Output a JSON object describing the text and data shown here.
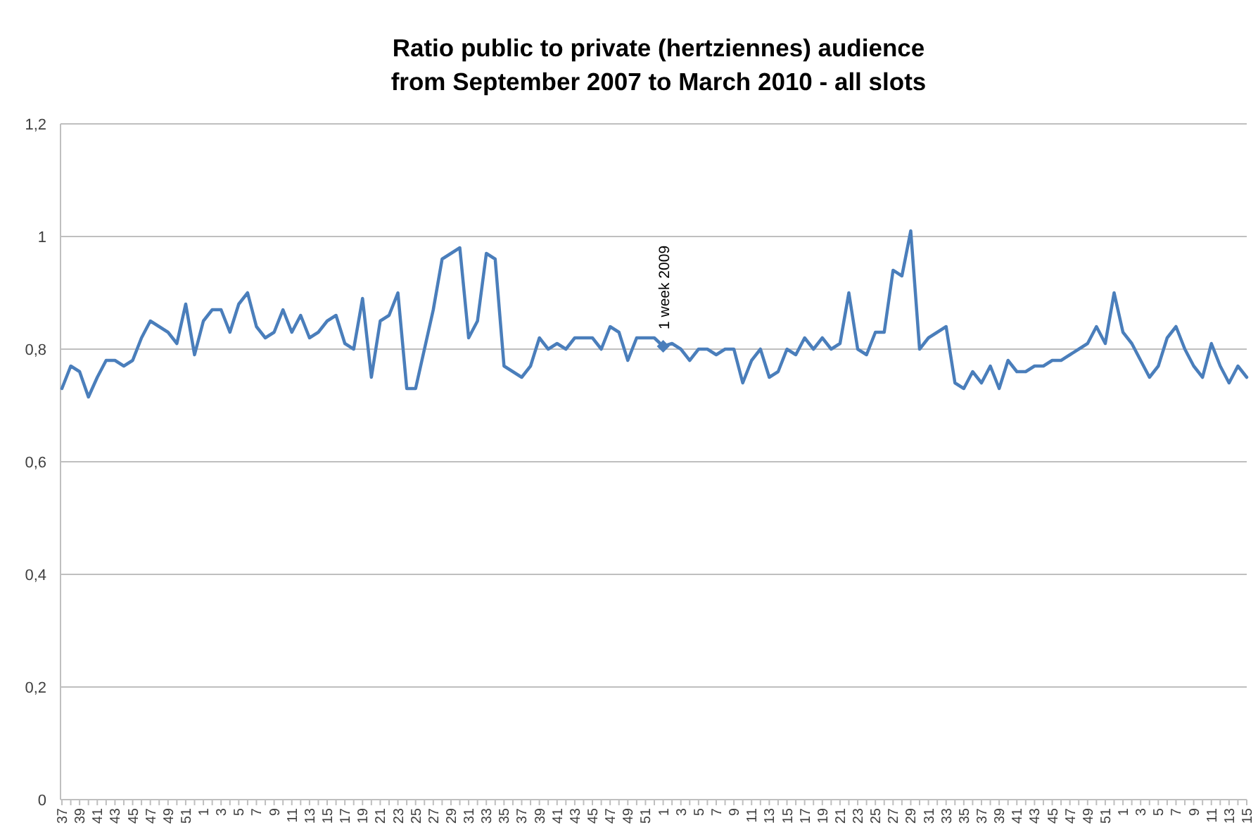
{
  "chart_data": {
    "type": "line",
    "title": "Ratio public to private (hertziennes) audience\nfrom September 2007 to March 2010 - all slots",
    "categories": [
      "37",
      null,
      "39",
      null,
      "41",
      null,
      "43",
      null,
      "45",
      null,
      "47",
      null,
      "49",
      null,
      "51",
      null,
      "1",
      null,
      "3",
      null,
      "5",
      null,
      "7",
      null,
      "9",
      null,
      "11",
      null,
      "13",
      null,
      "15",
      null,
      "17",
      null,
      "19",
      null,
      "21",
      null,
      "23",
      null,
      "25",
      null,
      "27",
      null,
      "29",
      null,
      "31",
      null,
      "33",
      null,
      "35",
      null,
      "37",
      null,
      "39",
      null,
      "41",
      null,
      "43",
      null,
      "45",
      null,
      "47",
      null,
      "49",
      null,
      "51",
      null,
      "1",
      null,
      "3",
      null,
      "5",
      null,
      "7",
      null,
      "9",
      null,
      "11",
      null,
      "13",
      null,
      "15",
      null,
      "17",
      null,
      "19",
      null,
      "21",
      null,
      "23",
      null,
      "25",
      null,
      "27",
      null,
      "29",
      null,
      "31",
      null,
      "33",
      null,
      "35",
      null,
      "37",
      null,
      "39",
      null,
      "41",
      null,
      "43",
      null,
      "45",
      null,
      "47",
      null,
      "49",
      null,
      "51",
      null,
      "1",
      null,
      "3",
      null,
      "5",
      null,
      "7",
      null,
      "9",
      null,
      "11",
      null,
      "13",
      null,
      "15"
    ],
    "series": [
      {
        "color": "#4a7ebb",
        "values": [
          0.73,
          0.77,
          0.76,
          0.715,
          0.75,
          0.78,
          0.78,
          0.77,
          0.78,
          0.82,
          0.85,
          0.84,
          0.83,
          0.81,
          0.88,
          0.79,
          0.85,
          0.87,
          0.87,
          0.83,
          0.88,
          0.9,
          0.84,
          0.82,
          0.83,
          0.87,
          0.83,
          0.86,
          0.82,
          0.83,
          0.85,
          0.86,
          0.81,
          0.8,
          0.89,
          0.75,
          0.85,
          0.86,
          0.9,
          0.73,
          0.73,
          0.8,
          0.87,
          0.96,
          0.97,
          0.98,
          0.82,
          0.85,
          0.97,
          0.96,
          0.77,
          0.76,
          0.75,
          0.77,
          0.82,
          0.8,
          0.81,
          0.8,
          0.82,
          0.82,
          0.82,
          0.8,
          0.84,
          0.83,
          0.78,
          0.82,
          0.82,
          0.82,
          0.805,
          0.81,
          0.8,
          0.78,
          0.8,
          0.8,
          0.79,
          0.8,
          0.8,
          0.74,
          0.78,
          0.8,
          0.75,
          0.76,
          0.8,
          0.79,
          0.82,
          0.8,
          0.82,
          0.8,
          0.81,
          0.9,
          0.8,
          0.79,
          0.83,
          0.83,
          0.94,
          0.93,
          1.01,
          0.8,
          0.82,
          0.83,
          0.84,
          0.74,
          0.73,
          0.76,
          0.74,
          0.77,
          0.73,
          0.78,
          0.76,
          0.76,
          0.77,
          0.77,
          0.78,
          0.78,
          0.79,
          0.8,
          0.81,
          0.84,
          0.81,
          0.9,
          0.83,
          0.81,
          0.78,
          0.75,
          0.77,
          0.82,
          0.84,
          0.8,
          0.77,
          0.75,
          0.81,
          0.77,
          0.74,
          0.77,
          0.75
        ]
      },
      {
        "type": "scatter",
        "marker": "diamond",
        "color": "#4a7ebb",
        "values": [
          null,
          null,
          null,
          null,
          null,
          null,
          null,
          null,
          null,
          null,
          null,
          null,
          null,
          null,
          null,
          null,
          null,
          null,
          null,
          null,
          null,
          null,
          null,
          null,
          null,
          null,
          null,
          null,
          null,
          null,
          null,
          null,
          null,
          null,
          null,
          null,
          null,
          null,
          null,
          null,
          null,
          null,
          null,
          null,
          null,
          null,
          null,
          null,
          null,
          null,
          null,
          null,
          null,
          null,
          null,
          null,
          null,
          null,
          null,
          null,
          null,
          null,
          null,
          null,
          null,
          null,
          null,
          null,
          0.805,
          null,
          null,
          null,
          null,
          null,
          null,
          null,
          null,
          null,
          null,
          null,
          null,
          null,
          null,
          null,
          null,
          null,
          null,
          null,
          null,
          null,
          null,
          null,
          null,
          null,
          null,
          null,
          null,
          null,
          null,
          null,
          null,
          null,
          null,
          null,
          null,
          null,
          null,
          null,
          null,
          null,
          null,
          null,
          null,
          null,
          null,
          null,
          null,
          null,
          null,
          null,
          null,
          null,
          null,
          null,
          null,
          null,
          null,
          null,
          null,
          null,
          null,
          null,
          null,
          null,
          null
        ]
      }
    ],
    "ylim": [
      0,
      1.2
    ],
    "yticks": [
      0,
      {
        "value": 0.2,
        "label": "0,2"
      },
      {
        "value": 0.4,
        "label": "0,4"
      },
      {
        "value": 0.6,
        "label": "0,6"
      },
      {
        "value": 0.8,
        "label": "0,8"
      },
      1,
      {
        "value": 1.2,
        "label": "1,2"
      }
    ],
    "grid": "y",
    "marker": "none",
    "line_style": "solid",
    "annotations": [
      "1 week 2009"
    ]
  }
}
